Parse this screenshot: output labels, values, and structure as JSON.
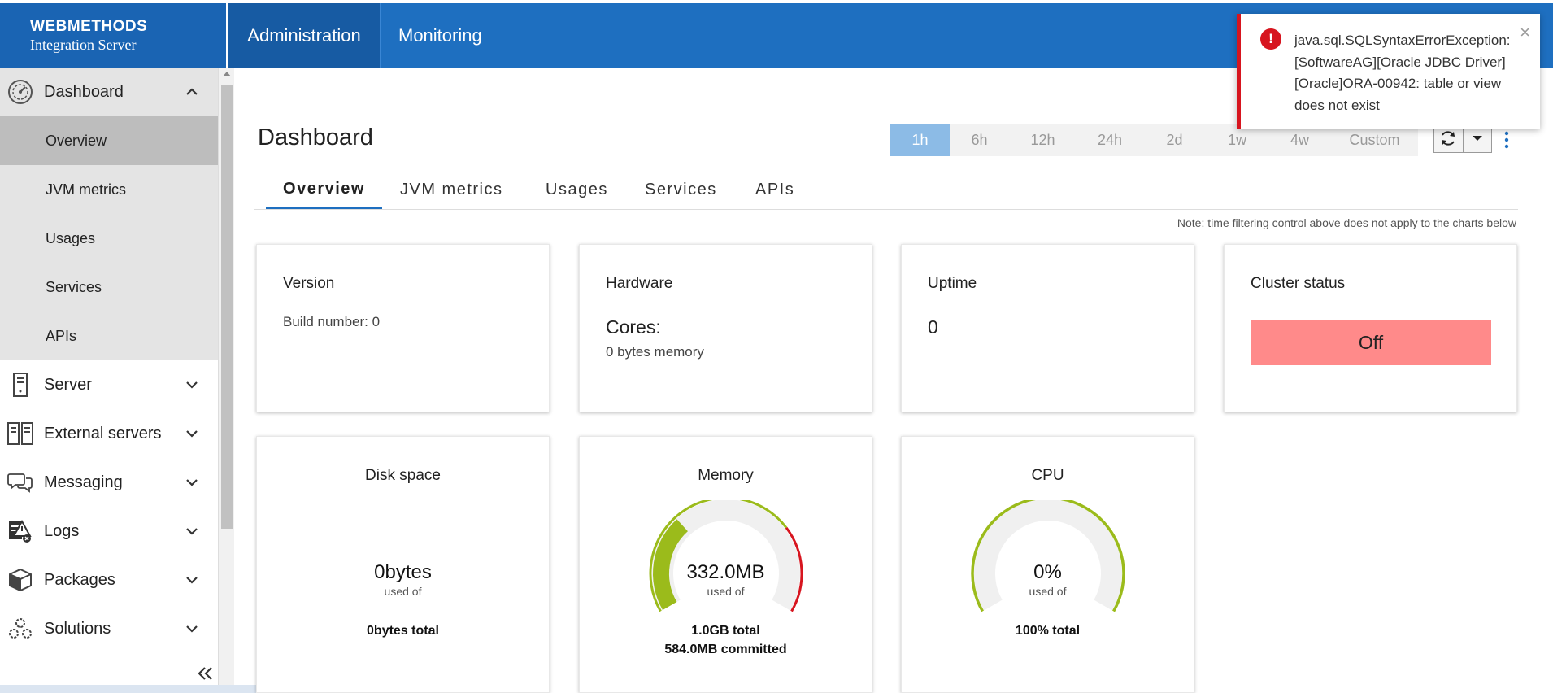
{
  "brand": {
    "line1": "WEBMETHODS",
    "line2": "Integration Server"
  },
  "topnav": {
    "administration": "Administration",
    "monitoring": "Monitoring"
  },
  "sidebar": {
    "dashboard": "Dashboard",
    "sub": {
      "overview": "Overview",
      "jvm": "JVM metrics",
      "usages": "Usages",
      "services": "Services",
      "apis": "APIs"
    },
    "server": "Server",
    "external": "External servers",
    "messaging": "Messaging",
    "logs": "Logs",
    "packages": "Packages",
    "solutions": "Solutions"
  },
  "main": {
    "title": "Dashboard",
    "time_filters": [
      "1h",
      "6h",
      "12h",
      "24h",
      "2d",
      "1w",
      "4w",
      "Custom"
    ],
    "active_time_filter": "1h",
    "tabs": {
      "overview": "Overview",
      "jvm": "JVM metrics",
      "usages": "Usages",
      "services": "Services",
      "apis": "APIs"
    },
    "note": "Note: time filtering control above does not apply to the charts below"
  },
  "cards": {
    "version": {
      "title": "Version",
      "build": "Build number: 0"
    },
    "hardware": {
      "title": "Hardware",
      "cores": "Cores:",
      "memory": "0 bytes memory"
    },
    "uptime": {
      "title": "Uptime",
      "value": "0"
    },
    "cluster": {
      "title": "Cluster status",
      "value": "Off",
      "color": "#ff8a8a"
    },
    "disk": {
      "title": "Disk space",
      "value": "0bytes",
      "sub": "used of",
      "total": "0bytes total"
    },
    "memory": {
      "title": "Memory",
      "value": "332.0MB",
      "sub": "used of",
      "total": "1.0GB total",
      "committed": "584.0MB committed",
      "used_fraction": 0.324,
      "committed_fraction": 0.57
    },
    "cpu": {
      "title": "CPU",
      "value": "0%",
      "sub": "used of",
      "total": "100% total",
      "used_fraction": 0.0
    }
  },
  "toast": {
    "message": "java.sql.SQLSyntaxErrorException: [SoftwareAG][Oracle JDBC Driver][Oracle]ORA-00942: table or view does not exist",
    "close": "×"
  },
  "colors": {
    "accent": "#1e6fc0",
    "gauge_green": "#9bbb1b",
    "gauge_red": "#d7151f",
    "error": "#d7151f"
  }
}
